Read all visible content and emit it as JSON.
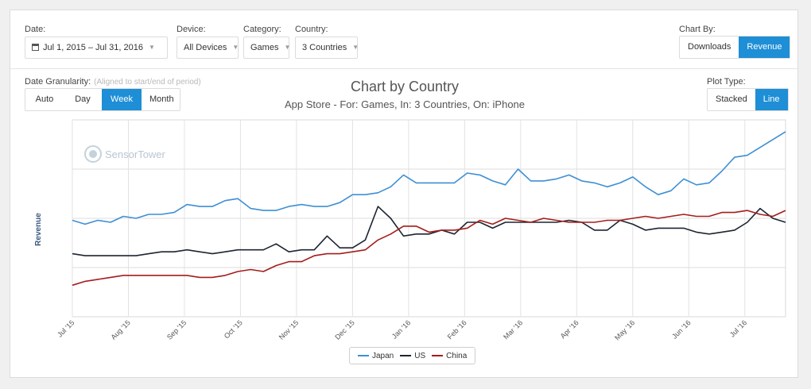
{
  "filters": {
    "date_label": "Date:",
    "date_value": "Jul 1, 2015 – Jul 31, 2016",
    "device_label": "Device:",
    "device_value": "All Devices",
    "category_label": "Category:",
    "category_value": "Games",
    "country_label": "Country:",
    "country_value": "3 Countries"
  },
  "chart_by": {
    "label": "Chart By:",
    "options": [
      "Downloads",
      "Revenue"
    ],
    "selected": "Revenue"
  },
  "granularity": {
    "label": "Date Granularity:",
    "hint": "(Aligned to start/end of period)",
    "options": [
      "Auto",
      "Day",
      "Week",
      "Month"
    ],
    "selected": "Week"
  },
  "plot_type": {
    "label": "Plot Type:",
    "options": [
      "Stacked",
      "Line"
    ],
    "selected": "Line"
  },
  "watermark": "SensorTower",
  "icons": {
    "date": "calendar-icon",
    "dropdown": "caret-down-icon",
    "watermark": "sensortower-logo-icon"
  },
  "colors": {
    "accent": "#1e8ed6",
    "japan": "#3e8fd4",
    "us": "#1c2530",
    "china": "#a51c1c"
  },
  "chart_data": {
    "type": "line",
    "title": "Chart by Country",
    "subtitle": "App Store - For: Games, In: 3 Countries, On: iPhone",
    "ylabel": "Revenue",
    "xlabel": "",
    "grid": true,
    "legend_position": "bottom",
    "ylim": [
      0,
      100
    ],
    "x_tick_labels": [
      "Jul '15",
      "Aug '15",
      "Sep '15",
      "Oct '15",
      "Nov '15",
      "Dec '15",
      "Jan '16",
      "Feb '16",
      "Mar '16",
      "Apr '16",
      "May '16",
      "Jun '16",
      "Jul '16"
    ],
    "series": [
      {
        "name": "Japan",
        "values": [
          49,
          47,
          49,
          48,
          51,
          50,
          52,
          52,
          53,
          57,
          56,
          56,
          59,
          60,
          55,
          54,
          54,
          56,
          57,
          56,
          56,
          58,
          62,
          62,
          63,
          66,
          72,
          68,
          68,
          68,
          68,
          73,
          72,
          69,
          67,
          75,
          69,
          69,
          70,
          72,
          69,
          68,
          66,
          68,
          71,
          66,
          62,
          64,
          70,
          67,
          68,
          74,
          81,
          82,
          86,
          90,
          94
        ]
      },
      {
        "name": "US",
        "values": [
          32,
          31,
          31,
          31,
          31,
          31,
          32,
          33,
          33,
          34,
          33,
          32,
          33,
          34,
          34,
          34,
          37,
          33,
          34,
          34,
          41,
          35,
          35,
          39,
          56,
          50,
          41,
          42,
          42,
          44,
          42,
          48,
          48,
          45,
          48,
          48,
          48,
          48,
          48,
          49,
          48,
          44,
          44,
          49,
          47,
          44,
          45,
          45,
          45,
          43,
          42,
          43,
          44,
          48,
          55,
          50,
          48
        ]
      },
      {
        "name": "China",
        "values": [
          16,
          18,
          19,
          20,
          21,
          21,
          21,
          21,
          21,
          21,
          20,
          20,
          21,
          23,
          24,
          23,
          26,
          28,
          28,
          31,
          32,
          32,
          33,
          34,
          39,
          42,
          46,
          46,
          43,
          44,
          44,
          45,
          49,
          47,
          50,
          49,
          48,
          50,
          49,
          48,
          48,
          48,
          49,
          49,
          50,
          51,
          50,
          51,
          52,
          51,
          51,
          53,
          53,
          54,
          52,
          51,
          54
        ]
      }
    ]
  }
}
